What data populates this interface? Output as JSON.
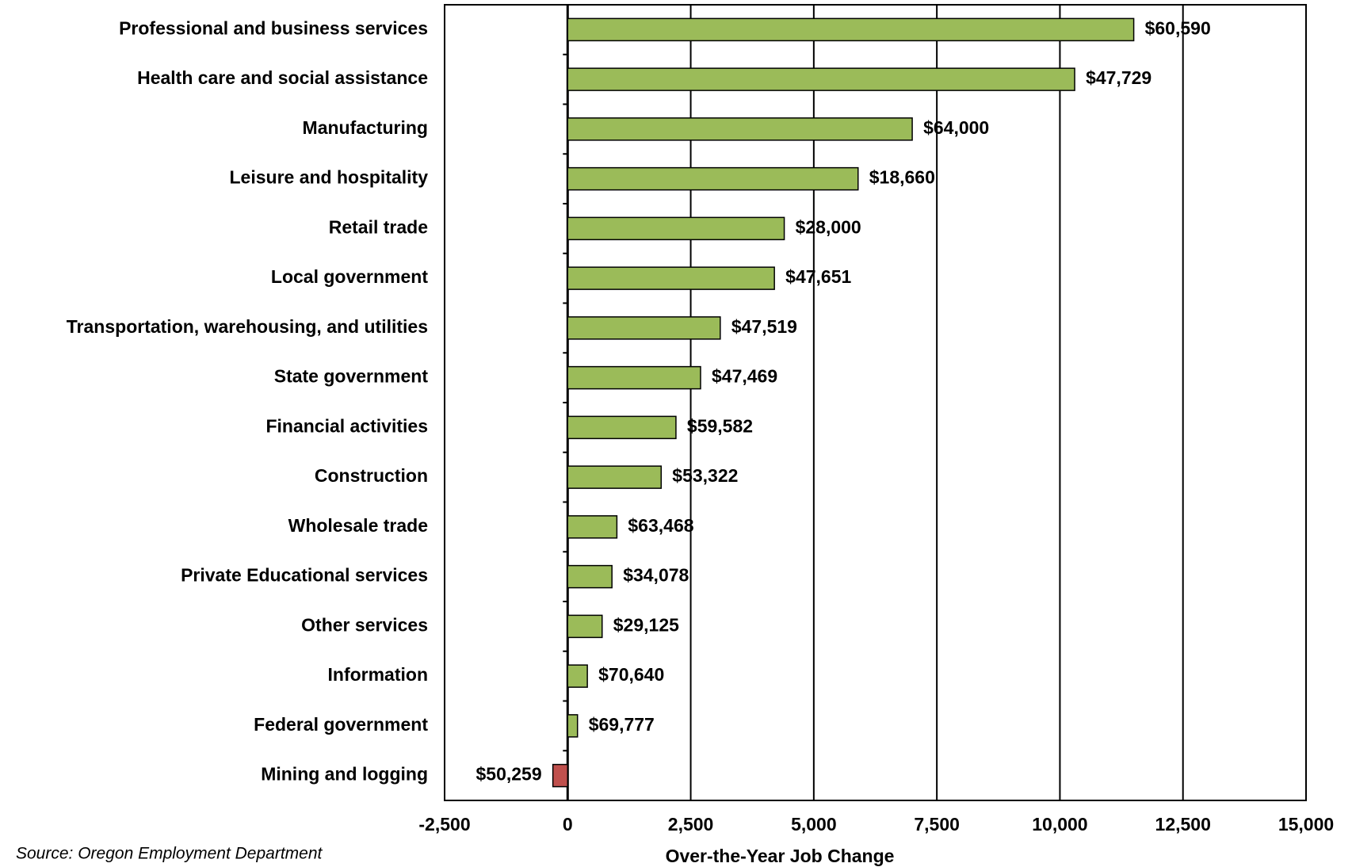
{
  "chart_data": {
    "type": "bar",
    "orientation": "horizontal",
    "categories": [
      "Professional and business services",
      "Health care and social assistance",
      "Manufacturing",
      "Leisure and hospitality",
      "Retail trade",
      "Local government",
      "Transportation, warehousing, and utilities",
      "State government",
      "Financial activities",
      "Construction",
      "Wholesale trade",
      "Private Educational services",
      "Other services",
      "Information",
      "Federal government",
      "Mining and logging"
    ],
    "values": [
      11500,
      10300,
      7000,
      5900,
      4400,
      4200,
      3100,
      2700,
      2200,
      1900,
      1000,
      900,
      700,
      400,
      200,
      -300
    ],
    "wage_labels": [
      "$60,590",
      "$47,729",
      "$64,000",
      "$18,660",
      "$28,000",
      "$47,651",
      "$47,519",
      "$47,469",
      "$59,582",
      "$53,322",
      "$63,468",
      "$34,078",
      "$29,125",
      "$70,640",
      "$69,777",
      "$50,259"
    ],
    "color": "#9bbb59",
    "negative_color": "#c0504d",
    "xlim": [
      -2500,
      15000
    ],
    "xticks": [
      {
        "value": -2500,
        "label": "-2,500"
      },
      0,
      {
        "value": 2500,
        "label": "2,500"
      },
      {
        "value": 5000,
        "label": "5,000"
      },
      {
        "value": 7500,
        "label": "7,500"
      },
      {
        "value": 10000,
        "label": "10,000"
      },
      {
        "value": 12500,
        "label": "12,500"
      },
      {
        "value": 15000,
        "label": "15,000"
      }
    ],
    "xlabel": "Over-the-Year Job Change",
    "source": "Source: Oregon Employment Department",
    "grid": true
  }
}
